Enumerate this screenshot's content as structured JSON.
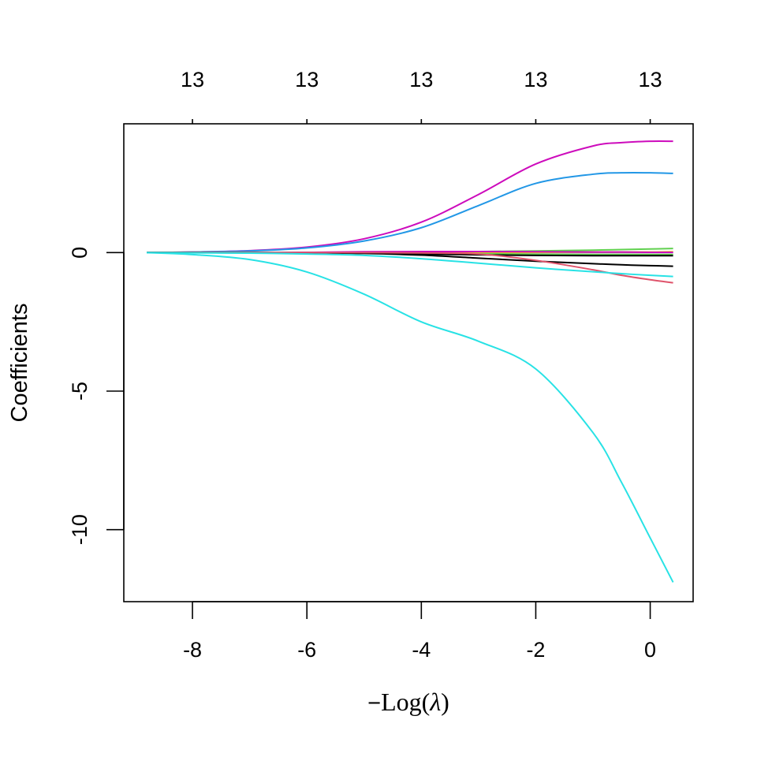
{
  "chart_data": {
    "type": "line",
    "title": "",
    "xlabel": {
      "prefix": "−",
      "text": "Log(",
      "symbol": "λ",
      "suffix": ")"
    },
    "ylabel": "Coefficients",
    "xlim": [
      -9.2,
      0.75
    ],
    "ylim": [
      -12.6,
      4.65
    ],
    "x_ticks": [
      {
        "value": -8,
        "label": "-8"
      },
      {
        "value": -6,
        "label": "-6"
      },
      {
        "value": -4,
        "label": "-4"
      },
      {
        "value": -2,
        "label": "-2"
      },
      {
        "value": 0,
        "label": "0"
      }
    ],
    "y_ticks": [
      {
        "value": 0,
        "label": "0"
      },
      {
        "value": -5,
        "label": "-5"
      },
      {
        "value": -10,
        "label": "-10"
      }
    ],
    "top_axis": {
      "ticks": [
        {
          "value": -8,
          "label": "13"
        },
        {
          "value": -6,
          "label": "13"
        },
        {
          "value": -4,
          "label": "13"
        },
        {
          "value": -2,
          "label": "13"
        },
        {
          "value": 0,
          "label": "13"
        }
      ]
    },
    "x": [
      -8.8,
      -8,
      -7,
      -6,
      -5,
      -4,
      -3,
      -2,
      -1,
      -0.5,
      0,
      0.4
    ],
    "series": [
      {
        "color": "#CD0BBC",
        "values": [
          0,
          0.02,
          0.07,
          0.2,
          0.5,
          1.1,
          2.1,
          3.2,
          3.85,
          3.97,
          4.02,
          4.02
        ]
      },
      {
        "color": "#2297E6",
        "values": [
          0,
          0.02,
          0.06,
          0.17,
          0.42,
          0.9,
          1.7,
          2.5,
          2.83,
          2.88,
          2.88,
          2.86
        ]
      },
      {
        "color": "#61D04F",
        "values": [
          0,
          0,
          0,
          0,
          0.01,
          0.02,
          0.04,
          0.06,
          0.09,
          0.11,
          0.13,
          0.15
        ]
      },
      {
        "color": "#9E9E9E",
        "values": [
          0,
          0,
          0,
          0,
          0,
          0,
          0,
          0,
          0,
          0,
          0,
          0
        ]
      },
      {
        "color": "#F5C710",
        "values": [
          0,
          0,
          0,
          0,
          0,
          0,
          0,
          0.01,
          0.02,
          0.02,
          0.02,
          0.03
        ]
      },
      {
        "color": "#CD0BBC",
        "values": [
          0,
          0,
          0,
          0.01,
          0.03,
          0.04,
          0.04,
          0.03,
          0.02,
          0.02,
          0.01,
          0.01
        ]
      },
      {
        "color": "#61D04F",
        "values": [
          0,
          0,
          0,
          0,
          -0.01,
          -0.02,
          -0.04,
          -0.06,
          -0.07,
          -0.07,
          -0.07,
          -0.07
        ]
      },
      {
        "color": "#000000",
        "values": [
          0,
          0,
          0,
          -0.01,
          -0.02,
          -0.05,
          -0.08,
          -0.1,
          -0.11,
          -0.11,
          -0.11,
          -0.11
        ]
      },
      {
        "color": "#000000",
        "values": [
          0,
          0,
          -0.01,
          -0.01,
          -0.03,
          -0.09,
          -0.2,
          -0.31,
          -0.4,
          -0.44,
          -0.47,
          -0.49
        ]
      },
      {
        "color": "#DF536B",
        "values": [
          0,
          0,
          0,
          0,
          0,
          -0.01,
          -0.05,
          -0.28,
          -0.62,
          -0.82,
          -0.98,
          -1.09
        ]
      },
      {
        "color": "#28E2E5",
        "values": [
          0,
          -0.01,
          -0.02,
          -0.05,
          -0.1,
          -0.22,
          -0.38,
          -0.55,
          -0.69,
          -0.76,
          -0.82,
          -0.86
        ]
      },
      {
        "color": "#28E2E5",
        "values": [
          0,
          -0.07,
          -0.25,
          -0.7,
          -1.5,
          -2.5,
          -3.2,
          -4.2,
          -6.5,
          -8.3,
          -10.3,
          -11.9
        ]
      }
    ]
  }
}
